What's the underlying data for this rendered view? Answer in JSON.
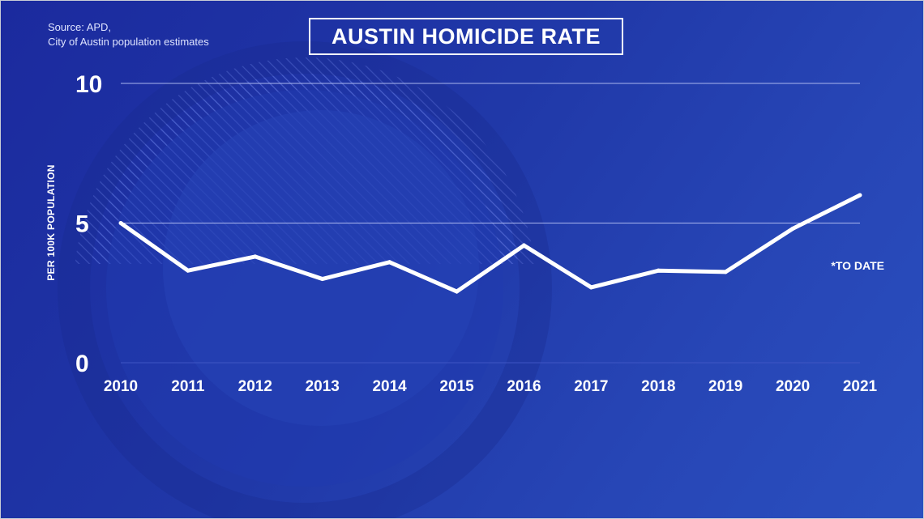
{
  "source_lines": [
    "Source: APD,",
    "City of Austin population estimates"
  ],
  "chart_data": {
    "type": "line",
    "title": "AUSTIN HOMICIDE RATE",
    "xlabel": "",
    "ylabel": "PER 100K POPULATION",
    "x": [
      "2010",
      "2011",
      "2012",
      "2013",
      "2014",
      "2015",
      "2016",
      "2017",
      "2018",
      "2019",
      "2020",
      "2021"
    ],
    "series": [
      {
        "values": [
          5.0,
          3.3,
          3.8,
          3.0,
          3.6,
          2.55,
          4.2,
          2.7,
          3.3,
          3.25,
          4.8,
          6.0
        ]
      }
    ],
    "ylim": [
      0,
      10
    ],
    "yticks": [
      0,
      5,
      10
    ],
    "grid": true,
    "annotation": "*TO DATE",
    "colors": {
      "line": "#ffffff",
      "gridline": "#aab6ee",
      "background": "#1f2fa0"
    }
  }
}
